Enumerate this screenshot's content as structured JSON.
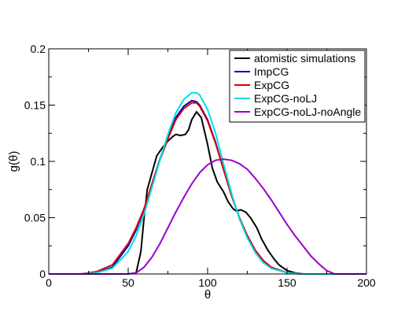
{
  "chart_data": {
    "type": "line",
    "title": "",
    "xlabel": "θ",
    "ylabel": "g(θ)",
    "xlim": [
      0,
      200
    ],
    "ylim": [
      0,
      0.2
    ],
    "x_ticks": [
      0,
      50,
      100,
      150,
      200
    ],
    "x_tick_labels": [
      "0",
      "50",
      "100",
      "150",
      "200"
    ],
    "y_ticks": [
      0,
      0.05,
      0.1,
      0.15,
      0.2
    ],
    "y_tick_labels": [
      "0",
      "0.05",
      "0.1",
      "0.15",
      "0.2"
    ],
    "grid": false,
    "legend_position": "top-right",
    "series": [
      {
        "name": "atomistic simulations",
        "color": "#000000",
        "points": [
          [
            0,
            0
          ],
          [
            50,
            0
          ],
          [
            55,
            0.001
          ],
          [
            58,
            0.02
          ],
          [
            60,
            0.05
          ],
          [
            62,
            0.075
          ],
          [
            65,
            0.09
          ],
          [
            68,
            0.105
          ],
          [
            72,
            0.113
          ],
          [
            75,
            0.118
          ],
          [
            78,
            0.122
          ],
          [
            80,
            0.124
          ],
          [
            83,
            0.123
          ],
          [
            86,
            0.124
          ],
          [
            88,
            0.128
          ],
          [
            90,
            0.137
          ],
          [
            93,
            0.144
          ],
          [
            96,
            0.139
          ],
          [
            100,
            0.115
          ],
          [
            103,
            0.094
          ],
          [
            106,
            0.082
          ],
          [
            110,
            0.073
          ],
          [
            113,
            0.064
          ],
          [
            116,
            0.058
          ],
          [
            118,
            0.056
          ],
          [
            121,
            0.057
          ],
          [
            124,
            0.055
          ],
          [
            127,
            0.05
          ],
          [
            131,
            0.041
          ],
          [
            134,
            0.031
          ],
          [
            138,
            0.021
          ],
          [
            142,
            0.013
          ],
          [
            145,
            0.008
          ],
          [
            150,
            0.003
          ],
          [
            155,
            0.001
          ],
          [
            160,
            0
          ],
          [
            200,
            0
          ]
        ]
      },
      {
        "name": "ImpCG",
        "color": "#0000cc",
        "points": [
          [
            0,
            0
          ],
          [
            20,
            0
          ],
          [
            30,
            0.001
          ],
          [
            40,
            0.006
          ],
          [
            50,
            0.025
          ],
          [
            55,
            0.039
          ],
          [
            60,
            0.057
          ],
          [
            65,
            0.08
          ],
          [
            70,
            0.102
          ],
          [
            75,
            0.122
          ],
          [
            80,
            0.139
          ],
          [
            85,
            0.149
          ],
          [
            90,
            0.154
          ],
          [
            93,
            0.153
          ],
          [
            95,
            0.15
          ],
          [
            100,
            0.137
          ],
          [
            105,
            0.117
          ],
          [
            110,
            0.093
          ],
          [
            115,
            0.07
          ],
          [
            120,
            0.05
          ],
          [
            125,
            0.034
          ],
          [
            130,
            0.021
          ],
          [
            135,
            0.012
          ],
          [
            140,
            0.006
          ],
          [
            150,
            0.001
          ],
          [
            160,
            0
          ],
          [
            200,
            0
          ]
        ]
      },
      {
        "name": "ExpCG",
        "color": "#dd0000",
        "points": [
          [
            0,
            0
          ],
          [
            20,
            0
          ],
          [
            30,
            0.002
          ],
          [
            40,
            0.008
          ],
          [
            50,
            0.027
          ],
          [
            55,
            0.041
          ],
          [
            60,
            0.058
          ],
          [
            65,
            0.08
          ],
          [
            70,
            0.101
          ],
          [
            75,
            0.12
          ],
          [
            80,
            0.137
          ],
          [
            85,
            0.147
          ],
          [
            90,
            0.152
          ],
          [
            93,
            0.152
          ],
          [
            95,
            0.149
          ],
          [
            100,
            0.136
          ],
          [
            105,
            0.116
          ],
          [
            110,
            0.093
          ],
          [
            115,
            0.07
          ],
          [
            120,
            0.05
          ],
          [
            125,
            0.034
          ],
          [
            130,
            0.021
          ],
          [
            135,
            0.012
          ],
          [
            140,
            0.006
          ],
          [
            150,
            0.001
          ],
          [
            160,
            0
          ],
          [
            200,
            0
          ]
        ]
      },
      {
        "name": "ExpCG-noLJ",
        "color": "#00e0e0",
        "points": [
          [
            0,
            0
          ],
          [
            20,
            0
          ],
          [
            30,
            0.001
          ],
          [
            40,
            0.005
          ],
          [
            50,
            0.02
          ],
          [
            55,
            0.034
          ],
          [
            60,
            0.053
          ],
          [
            65,
            0.077
          ],
          [
            70,
            0.101
          ],
          [
            75,
            0.124
          ],
          [
            80,
            0.143
          ],
          [
            85,
            0.155
          ],
          [
            90,
            0.161
          ],
          [
            93,
            0.161
          ],
          [
            95,
            0.159
          ],
          [
            100,
            0.146
          ],
          [
            105,
            0.125
          ],
          [
            110,
            0.098
          ],
          [
            115,
            0.072
          ],
          [
            120,
            0.049
          ],
          [
            125,
            0.032
          ],
          [
            130,
            0.019
          ],
          [
            135,
            0.01
          ],
          [
            140,
            0.005
          ],
          [
            150,
            0.001
          ],
          [
            160,
            0
          ],
          [
            200,
            0
          ]
        ]
      },
      {
        "name": "ExpCG-noLJ-noAngle",
        "color": "#9900cc",
        "points": [
          [
            0,
            0
          ],
          [
            50,
            0
          ],
          [
            55,
            0.001
          ],
          [
            60,
            0.006
          ],
          [
            65,
            0.015
          ],
          [
            70,
            0.027
          ],
          [
            75,
            0.041
          ],
          [
            80,
            0.055
          ],
          [
            85,
            0.068
          ],
          [
            90,
            0.08
          ],
          [
            95,
            0.09
          ],
          [
            100,
            0.097
          ],
          [
            105,
            0.101
          ],
          [
            110,
            0.102
          ],
          [
            115,
            0.101
          ],
          [
            120,
            0.098
          ],
          [
            125,
            0.093
          ],
          [
            130,
            0.085
          ],
          [
            135,
            0.076
          ],
          [
            140,
            0.066
          ],
          [
            145,
            0.055
          ],
          [
            150,
            0.044
          ],
          [
            155,
            0.034
          ],
          [
            160,
            0.025
          ],
          [
            165,
            0.016
          ],
          [
            170,
            0.009
          ],
          [
            175,
            0.003
          ],
          [
            180,
            0
          ],
          [
            200,
            0
          ]
        ]
      }
    ]
  }
}
